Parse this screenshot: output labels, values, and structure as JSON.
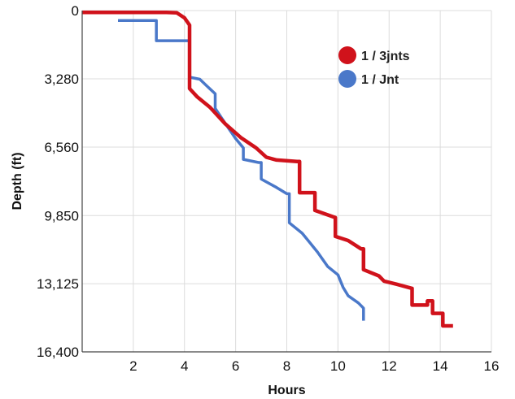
{
  "chart_data": {
    "type": "line",
    "title": "",
    "xlabel": "Hours",
    "ylabel": "Depth (ft)",
    "xlim": [
      0,
      16
    ],
    "ylim": [
      16400,
      0
    ],
    "y_inverted": true,
    "grid": true,
    "x_ticks": [
      2,
      4,
      6,
      8,
      10,
      12,
      14,
      16
    ],
    "x_tick_labels": [
      "2",
      "4",
      "6",
      "8",
      "10",
      "12",
      "14",
      "16"
    ],
    "y_ticks": [
      0,
      3280,
      6560,
      9850,
      13125,
      16400
    ],
    "y_tick_labels": [
      "0",
      "3,280",
      "6,560",
      "9,850",
      "13,125",
      "16,400"
    ],
    "legend_position": "top-right",
    "series": [
      {
        "name": "1 / 3jnts",
        "color": "#d0121b",
        "points": [
          [
            0.0,
            90
          ],
          [
            3.3,
            90
          ],
          [
            3.7,
            110
          ],
          [
            4.0,
            350
          ],
          [
            4.2,
            700
          ],
          [
            4.2,
            3750
          ],
          [
            4.5,
            4150
          ],
          [
            5.0,
            4650
          ],
          [
            5.6,
            5450
          ],
          [
            6.2,
            6100
          ],
          [
            6.8,
            6600
          ],
          [
            7.2,
            7050
          ],
          [
            7.6,
            7180
          ],
          [
            8.4,
            7250
          ],
          [
            8.5,
            7250
          ],
          [
            8.5,
            8750
          ],
          [
            9.1,
            8750
          ],
          [
            9.1,
            9600
          ],
          [
            9.9,
            9950
          ],
          [
            9.9,
            10850
          ],
          [
            10.4,
            11050
          ],
          [
            10.9,
            11450
          ],
          [
            11.0,
            11450
          ],
          [
            11.0,
            12450
          ],
          [
            11.6,
            12750
          ],
          [
            11.8,
            13000
          ],
          [
            12.3,
            13150
          ],
          [
            12.9,
            13350
          ],
          [
            12.9,
            14150
          ],
          [
            13.5,
            14150
          ],
          [
            13.5,
            13950
          ],
          [
            13.7,
            13950
          ],
          [
            13.7,
            14550
          ],
          [
            14.1,
            14550
          ],
          [
            14.1,
            15150
          ],
          [
            14.5,
            15150
          ]
        ]
      },
      {
        "name": "1 / Jnt",
        "color": "#4a78c9",
        "points": [
          [
            1.4,
            480
          ],
          [
            2.9,
            480
          ],
          [
            2.9,
            1450
          ],
          [
            4.2,
            1450
          ],
          [
            4.2,
            3200
          ],
          [
            4.6,
            3300
          ],
          [
            4.9,
            3650
          ],
          [
            5.2,
            4000
          ],
          [
            5.2,
            4700
          ],
          [
            5.5,
            5250
          ],
          [
            6.0,
            6150
          ],
          [
            6.3,
            6600
          ],
          [
            6.3,
            7150
          ],
          [
            6.9,
            7300
          ],
          [
            7.0,
            7300
          ],
          [
            7.0,
            8100
          ],
          [
            7.6,
            8500
          ],
          [
            8.0,
            8800
          ],
          [
            8.1,
            8800
          ],
          [
            8.1,
            10200
          ],
          [
            8.6,
            10700
          ],
          [
            9.2,
            11600
          ],
          [
            9.6,
            12300
          ],
          [
            10.0,
            12700
          ],
          [
            10.2,
            13300
          ],
          [
            10.4,
            13700
          ],
          [
            10.8,
            14050
          ],
          [
            11.0,
            14300
          ],
          [
            11.0,
            14900
          ]
        ]
      }
    ]
  }
}
